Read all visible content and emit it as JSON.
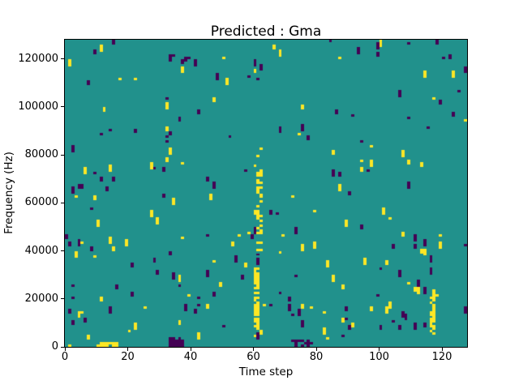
{
  "chart_data": {
    "type": "heatmap",
    "title": "Predicted : Gma",
    "xlabel": "Time step",
    "ylabel": "Frequency (Hz)",
    "grid": {
      "cols": 128,
      "rows": 128
    },
    "xlim": [
      0,
      128
    ],
    "ylim": [
      0,
      128000
    ],
    "x_ticks": [
      0,
      20,
      40,
      60,
      80,
      100,
      120
    ],
    "y_ticks": [
      0,
      20000,
      40000,
      60000,
      80000,
      100000,
      120000
    ],
    "legend": "none",
    "grid_lines": false,
    "categories": [
      "low",
      "mid",
      "high"
    ],
    "colors": {
      "low": "#440154",
      "mid": "#21918c",
      "high": "#fde725"
    },
    "background_value": "mid",
    "pattern": {
      "description": "binary-spike raster: mostly mid (teal) cells with sparse 1-col-wide vertical runs of high (yellow) and low (purple), denser at low frequencies, left edge, top band, and yellow streaks near time 60 and 116",
      "seed": 20,
      "event_probability": 0.015,
      "run_length_max": 3,
      "color_split": 0.5,
      "row_density": [
        [
          0,
          16,
          1.6
        ],
        [
          16,
          48,
          1.25
        ],
        [
          48,
          64,
          0.6
        ],
        [
          64,
          84,
          0.95
        ],
        [
          84,
          112,
          0.7
        ],
        [
          112,
          128,
          1.25
        ]
      ],
      "col_density": [
        [
          0,
          3,
          2.2
        ],
        [
          58,
          63,
          1.3
        ],
        [
          126,
          128,
          1.5
        ]
      ],
      "streaks": [
        {
          "col_start": 60,
          "col_end": 61,
          "row_start": 4,
          "row_end": 34,
          "value": "high",
          "fill": 0.6
        },
        {
          "col_start": 61,
          "col_end": 62,
          "row_start": 40,
          "row_end": 82,
          "value": "high",
          "fill": 0.35
        },
        {
          "col_start": 116,
          "col_end": 117,
          "row_start": 5,
          "row_end": 23,
          "value": "high",
          "fill": 0.7
        },
        {
          "col_start": 10,
          "col_end": 16,
          "row_start": 0,
          "row_end": 1,
          "value": "high",
          "fill": 0.85
        },
        {
          "col_start": 33,
          "col_end": 37,
          "row_start": 0,
          "row_end": 3,
          "value": "low",
          "fill": 0.8
        },
        {
          "col_start": 72,
          "col_end": 78,
          "row_start": 0,
          "row_end": 2,
          "value": "low",
          "fill": 0.55
        }
      ]
    }
  }
}
